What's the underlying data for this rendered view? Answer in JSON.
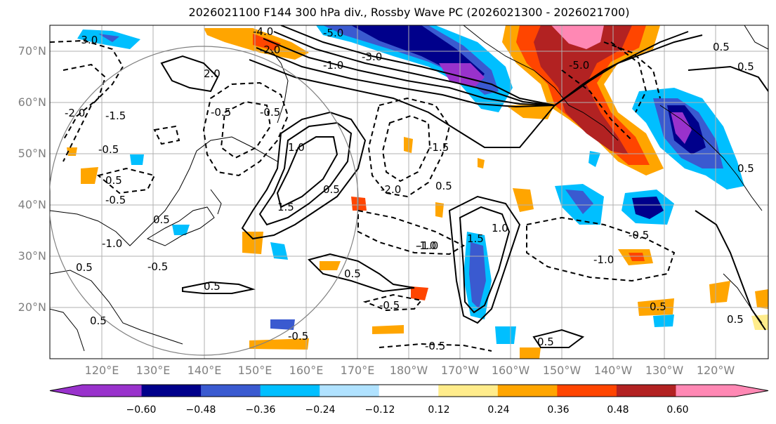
{
  "title": "2026021100 F144 300 hPa div., Rossby Wave PC (2026021300 - 2026021700)",
  "map": {
    "lat_labels": [
      "70°N",
      "60°N",
      "50°N",
      "40°N",
      "30°N",
      "20°N"
    ],
    "lon_labels": [
      "120°E",
      "130°E",
      "140°E",
      "150°E",
      "160°E",
      "170°E",
      "180°W",
      "170°W",
      "160°W",
      "150°W",
      "140°W",
      "130°W",
      "120°W"
    ],
    "contour_labels": [
      "-5.0",
      "-3.0",
      "-1.0",
      "-4.0",
      "-2.0",
      "-3.0",
      "-2.0",
      "-1.5",
      "-0.5",
      "-0.5",
      "0.5",
      "-1.0",
      "0.5",
      "1.5",
      "-0.5",
      "1.0",
      "-1.5",
      "-2.0",
      "0.5",
      "-1.0",
      "0.5",
      "0.5",
      "-5.0",
      "0.5",
      "-1.0",
      "0.5",
      "-0.5",
      "0.5",
      "-0.5",
      "0.5",
      "-0.5",
      "0.5",
      "0.5",
      "-0.5",
      "-1.0",
      "0.5",
      "0.5",
      "1.5",
      "0.5",
      "-0.5",
      "-0.5",
      "1.0",
      "2.0"
    ]
  },
  "colorbar": {
    "labels": [
      "−0.60",
      "−0.48",
      "−0.36",
      "−0.24",
      "−0.12",
      "0.12",
      "0.24",
      "0.36",
      "0.48",
      "0.60"
    ],
    "colors": [
      "#9932cc",
      "#00008b",
      "#3a5ad0",
      "#00bfff",
      "#b0e2ff",
      "#ffffff",
      "#ffec8b",
      "#ffa500",
      "#ff4500",
      "#b22222",
      "#ff88b4"
    ]
  }
}
